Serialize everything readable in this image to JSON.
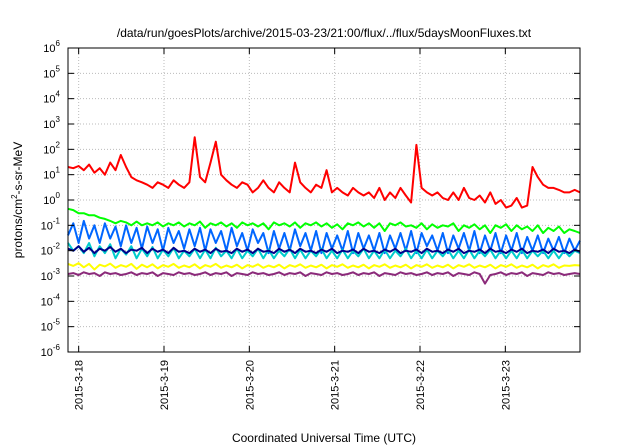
{
  "chart_data": {
    "type": "line",
    "title": "/data/run/goesPlots/archive/2015-03-23/21:00/flux/../flux/5daysMoonFluxes.txt",
    "xlabel": "Coordinated Universal Time (UTC)",
    "ylabel": "protons/cm2-s-sr-MeV",
    "ylabel_base": "protons/cm",
    "ylabel_sup": "2",
    "ylabel_rest": "-s-sr-MeV",
    "yscale": "log",
    "ylim": [
      1e-06,
      1000000.0
    ],
    "xlim": [
      "2015-03-17 21:00",
      "2015-03-23 21:00"
    ],
    "grid": true,
    "x_ticks": [
      "2015-3-18",
      "2015-3-19",
      "2015-3-20",
      "2015-3-21",
      "2015-3-22",
      "2015-3-23"
    ],
    "y_ticks": [
      {
        "base": "10",
        "exp": "-6"
      },
      {
        "base": "10",
        "exp": "-5"
      },
      {
        "base": "10",
        "exp": "-4"
      },
      {
        "base": "10",
        "exp": "-3"
      },
      {
        "base": "10",
        "exp": "-2"
      },
      {
        "base": "10",
        "exp": "-1"
      },
      {
        "base": "10",
        "exp": "0"
      },
      {
        "base": "10",
        "exp": "1"
      },
      {
        "base": "10",
        "exp": "2"
      },
      {
        "base": "10",
        "exp": "3"
      },
      {
        "base": "10",
        "exp": "4"
      },
      {
        "base": "10",
        "exp": "5"
      },
      {
        "base": "10",
        "exp": "6"
      }
    ],
    "x_step_hours": 4,
    "series": [
      {
        "color": "#ff0000",
        "values": [
          20,
          18,
          22,
          15,
          25,
          12,
          18,
          10,
          30,
          15,
          60,
          20,
          8,
          6,
          5,
          4,
          3,
          5,
          4,
          3,
          6,
          4,
          3,
          5,
          300,
          8,
          5,
          30,
          200,
          10,
          6,
          4,
          3,
          5,
          4,
          2,
          3,
          6,
          3,
          2,
          5,
          3,
          2,
          30,
          5,
          3,
          2,
          4,
          3,
          15,
          2,
          3,
          2,
          1.5,
          3,
          2,
          1.5,
          2,
          1.2,
          3,
          1,
          2,
          1.2,
          3,
          1.5,
          0.8,
          150,
          3,
          2,
          1.5,
          2,
          1.2,
          1,
          2,
          1,
          3,
          1.2,
          1,
          1.5,
          0.8,
          2,
          0.7,
          1,
          0.5,
          0.6,
          1.2,
          0.5,
          0.6,
          20,
          8,
          4,
          3,
          3,
          2.5,
          2,
          2,
          2.5,
          2
        ]
      },
      {
        "color": "#00ff00",
        "values": [
          0.45,
          0.4,
          0.3,
          0.3,
          0.25,
          0.25,
          0.2,
          0.18,
          0.15,
          0.12,
          0.15,
          0.13,
          0.1,
          0.14,
          0.1,
          0.12,
          0.1,
          0.13,
          0.09,
          0.12,
          0.1,
          0.13,
          0.09,
          0.12,
          0.1,
          0.14,
          0.08,
          0.12,
          0.1,
          0.13,
          0.09,
          0.12,
          0.08,
          0.13,
          0.1,
          0.12,
          0.09,
          0.12,
          0.07,
          0.13,
          0.1,
          0.12,
          0.09,
          0.13,
          0.08,
          0.12,
          0.1,
          0.13,
          0.09,
          0.12,
          0.08,
          0.11,
          0.07,
          0.12,
          0.1,
          0.13,
          0.09,
          0.12,
          0.08,
          0.12,
          0.06,
          0.12,
          0.1,
          0.13,
          0.09,
          0.1,
          0.08,
          0.12,
          0.07,
          0.11,
          0.08,
          0.1,
          0.09,
          0.12,
          0.06,
          0.1,
          0.08,
          0.11,
          0.07,
          0.1,
          0.05,
          0.1,
          0.08,
          0.11,
          0.06,
          0.1,
          0.07,
          0.09,
          0.06,
          0.1,
          0.05,
          0.08,
          0.06,
          0.09,
          0.05,
          0.07,
          0.06,
          0.05
        ]
      },
      {
        "color": "#0066ff",
        "values": [
          0.04,
          0.12,
          0.02,
          0.15,
          0.03,
          0.1,
          0.02,
          0.12,
          0.03,
          0.09,
          0.015,
          0.1,
          0.02,
          0.08,
          0.012,
          0.09,
          0.02,
          0.07,
          0.01,
          0.08,
          0.02,
          0.06,
          0.012,
          0.07,
          0.015,
          0.08,
          0.01,
          0.07,
          0.02,
          0.06,
          0.01,
          0.08,
          0.015,
          0.05,
          0.01,
          0.07,
          0.02,
          0.05,
          0.008,
          0.06,
          0.012,
          0.05,
          0.01,
          0.07,
          0.015,
          0.05,
          0.01,
          0.06,
          0.008,
          0.05,
          0.012,
          0.04,
          0.01,
          0.06,
          0.008,
          0.05,
          0.012,
          0.04,
          0.01,
          0.05,
          0.008,
          0.04,
          0.012,
          0.05,
          0.01,
          0.06,
          0.008,
          0.05,
          0.015,
          0.04,
          0.01,
          0.05,
          0.008,
          0.04,
          0.012,
          0.05,
          0.01,
          0.06,
          0.008,
          0.04,
          0.01,
          0.05,
          0.008,
          0.04,
          0.01,
          0.05,
          0.008,
          0.035,
          0.01,
          0.04,
          0.008,
          0.03,
          0.01,
          0.035,
          0.008,
          0.03,
          0.01,
          0.025
        ]
      },
      {
        "color": "#00cccc",
        "values": [
          0.02,
          0.01,
          0.015,
          0.008,
          0.02,
          0.006,
          0.015,
          0.008,
          0.018,
          0.005,
          0.012,
          0.007,
          0.015,
          0.005,
          0.012,
          0.006,
          0.014,
          0.005,
          0.011,
          0.006,
          0.013,
          0.005,
          0.01,
          0.006,
          0.012,
          0.005,
          0.011,
          0.005,
          0.013,
          0.006,
          0.01,
          0.005,
          0.012,
          0.005,
          0.01,
          0.006,
          0.012,
          0.005,
          0.011,
          0.005,
          0.01,
          0.006,
          0.012,
          0.005,
          0.011,
          0.005,
          0.01,
          0.006,
          0.012,
          0.005,
          0.01,
          0.005,
          0.011,
          0.005,
          0.01,
          0.006,
          0.012,
          0.005,
          0.01,
          0.005,
          0.011,
          0.005,
          0.01,
          0.006,
          0.012,
          0.005,
          0.01,
          0.005,
          0.011,
          0.005,
          0.01,
          0.006,
          0.011,
          0.005,
          0.01,
          0.005,
          0.011,
          0.005,
          0.01,
          0.006,
          0.011,
          0.005,
          0.01,
          0.005,
          0.01,
          0.005,
          0.011,
          0.005,
          0.01,
          0.006,
          0.01,
          0.005,
          0.01,
          0.005,
          0.01,
          0.006,
          0.01,
          0.008
        ]
      },
      {
        "color": "#00008b",
        "values": [
          0.012,
          0.01,
          0.015,
          0.009,
          0.013,
          0.008,
          0.012,
          0.01,
          0.014,
          0.009,
          0.012,
          0.008,
          0.011,
          0.01,
          0.013,
          0.008,
          0.012,
          0.009,
          0.011,
          0.008,
          0.013,
          0.009,
          0.01,
          0.008,
          0.012,
          0.009,
          0.011,
          0.008,
          0.012,
          0.009,
          0.01,
          0.008,
          0.012,
          0.009,
          0.011,
          0.008,
          0.012,
          0.009,
          0.01,
          0.008,
          0.012,
          0.009,
          0.011,
          0.008,
          0.012,
          0.009,
          0.01,
          0.008,
          0.011,
          0.009,
          0.012,
          0.008,
          0.01,
          0.009,
          0.011,
          0.008,
          0.012,
          0.009,
          0.01,
          0.008,
          0.011,
          0.009,
          0.012,
          0.008,
          0.01,
          0.009,
          0.011,
          0.008,
          0.012,
          0.009,
          0.01,
          0.008,
          0.011,
          0.009,
          0.012,
          0.008,
          0.01,
          0.009,
          0.011,
          0.008,
          0.012,
          0.009,
          0.01,
          0.008,
          0.011,
          0.009,
          0.012,
          0.008,
          0.01,
          0.009,
          0.011,
          0.008,
          0.012,
          0.009,
          0.01,
          0.008,
          0.011,
          0.009
        ]
      },
      {
        "color": "#ffff00",
        "values": [
          0.003,
          0.0025,
          0.0032,
          0.0022,
          0.003,
          0.0018,
          0.0028,
          0.0024,
          0.0031,
          0.0021,
          0.0027,
          0.0023,
          0.003,
          0.0019,
          0.0028,
          0.0022,
          0.0029,
          0.002,
          0.0027,
          0.0023,
          0.003,
          0.0021,
          0.0026,
          0.0022,
          0.0029,
          0.002,
          0.0027,
          0.0023,
          0.003,
          0.0021,
          0.0026,
          0.0022,
          0.0028,
          0.002,
          0.0027,
          0.0023,
          0.0029,
          0.0021,
          0.0026,
          0.0022,
          0.0028,
          0.002,
          0.0027,
          0.0023,
          0.0029,
          0.0021,
          0.0026,
          0.0022,
          0.0028,
          0.002,
          0.0027,
          0.0023,
          0.0029,
          0.0021,
          0.0026,
          0.0022,
          0.0028,
          0.002,
          0.0027,
          0.0023,
          0.0029,
          0.0021,
          0.0026,
          0.0022,
          0.0028,
          0.002,
          0.0027,
          0.0023,
          0.0029,
          0.0021,
          0.0026,
          0.0022,
          0.0028,
          0.002,
          0.0027,
          0.0023,
          0.0029,
          0.0021,
          0.0026,
          0.0022,
          0.0028,
          0.002,
          0.0027,
          0.0023,
          0.0029,
          0.0021,
          0.0026,
          0.0022,
          0.0028,
          0.002,
          0.0027,
          0.0023,
          0.0029,
          0.0021,
          0.0026,
          0.0025,
          0.0027,
          0.0026
        ]
      },
      {
        "color": "#8b2a7a",
        "values": [
          0.0012,
          0.0013,
          0.0011,
          0.0014,
          0.0012,
          0.0013,
          0.001,
          0.0014,
          0.0012,
          0.0013,
          0.0011,
          0.0012,
          0.0014,
          0.0011,
          0.0013,
          0.0012,
          0.0014,
          0.001,
          0.0013,
          0.0012,
          0.0011,
          0.0014,
          0.0012,
          0.0013,
          0.0011,
          0.0012,
          0.0014,
          0.0011,
          0.0013,
          0.0012,
          0.0014,
          0.001,
          0.0013,
          0.0012,
          0.0011,
          0.0014,
          0.0012,
          0.0013,
          0.0011,
          0.0012,
          0.0014,
          0.0011,
          0.0013,
          0.0012,
          0.0014,
          0.001,
          0.0013,
          0.0012,
          0.0011,
          0.0014,
          0.0012,
          0.0013,
          0.0011,
          0.0012,
          0.0014,
          0.0011,
          0.0013,
          0.0012,
          0.0014,
          0.001,
          0.0013,
          0.0012,
          0.0011,
          0.0014,
          0.0012,
          0.0013,
          0.0011,
          0.0012,
          0.0014,
          0.0011,
          0.0013,
          0.0012,
          0.0014,
          0.001,
          0.0013,
          0.0012,
          0.0011,
          0.0014,
          0.0012,
          0.0005,
          0.0011,
          0.0012,
          0.0014,
          0.0011,
          0.0013,
          0.0012,
          0.0014,
          0.001,
          0.0013,
          0.0012,
          0.0011,
          0.0014,
          0.0012,
          0.0013,
          0.0011,
          0.0012,
          0.0013,
          0.0012
        ]
      }
    ]
  }
}
